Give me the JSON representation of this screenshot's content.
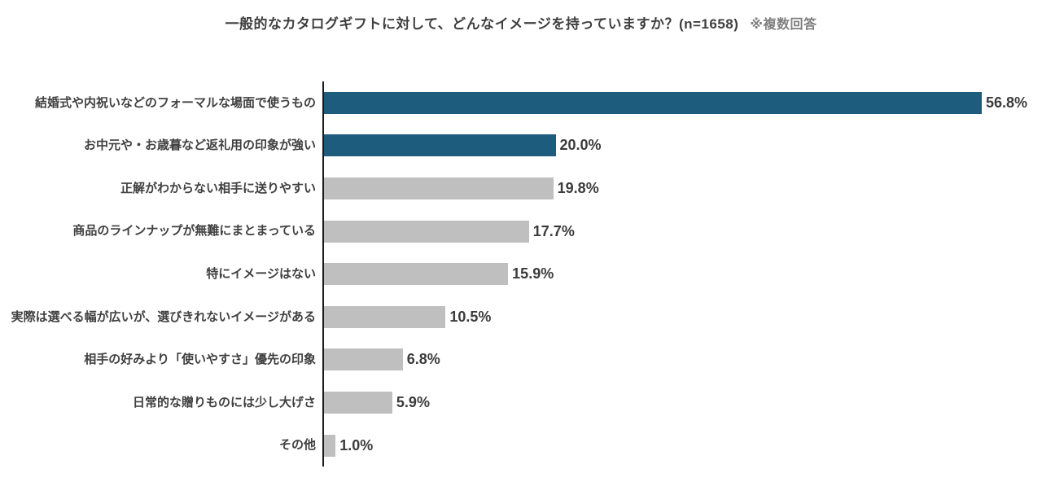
{
  "title": {
    "main": "一般的なカタログギフトに対して、どんなイメージを持っていますか？(n=1658)",
    "note": "※複数回答"
  },
  "chart_data": {
    "type": "bar",
    "orientation": "horizontal",
    "title": "一般的なカタログギフトに対して、どんなイメージを持っていますか？(n=1658)",
    "note": "※複数回答",
    "sample_size": 1658,
    "categories": [
      "結婚式や内祝いなどのフォーマルな場面で使うもの",
      "お中元や・お歳暮など返礼用の印象が強い",
      "正解がわからない相手に送りやすい",
      "商品のラインナップが無難にまとまっている",
      "特にイメージはない",
      "実際は選べる幅が広いが、選びきれないイメージがある",
      "相手の好みより「使いやすさ」優先の印象",
      "日常的な贈りものには少し大げさ",
      "その他"
    ],
    "values": [
      56.8,
      20.0,
      19.8,
      17.7,
      15.9,
      10.5,
      6.8,
      5.9,
      1.0
    ],
    "value_labels": [
      "56.8%",
      "20.0%",
      "19.8%",
      "17.7%",
      "15.9%",
      "10.5%",
      "6.8%",
      "5.9%",
      "1.0%"
    ],
    "unit": "%",
    "highlight_indices": [
      0,
      1
    ],
    "bar_color_highlight": "#1E5C7E",
    "bar_color_default": "#BFBFBF",
    "axis_color": "#1a1a1a",
    "grid": false,
    "legend": "none",
    "xlim": [
      0,
      60
    ]
  }
}
